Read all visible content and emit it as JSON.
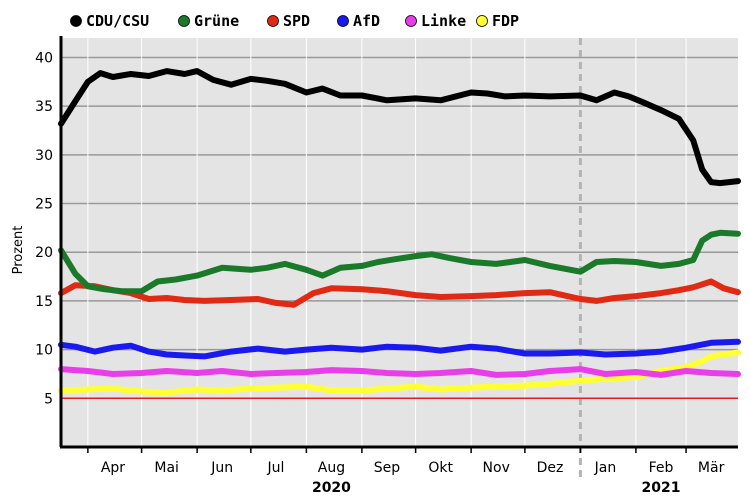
{
  "chart_data": {
    "type": "line",
    "ylabel": "Prozent",
    "ylim": [
      0,
      42
    ],
    "yticks": [
      5,
      10,
      15,
      20,
      25,
      30,
      35,
      40
    ],
    "x_range": [
      "2020-03-17",
      "2021-03-30"
    ],
    "months": [
      {
        "label": "Apr",
        "date": "2020-04-15"
      },
      {
        "label": "Mai",
        "date": "2020-05-15"
      },
      {
        "label": "Jun",
        "date": "2020-06-15"
      },
      {
        "label": "Jul",
        "date": "2020-07-15"
      },
      {
        "label": "Aug",
        "date": "2020-08-15"
      },
      {
        "label": "Sep",
        "date": "2020-09-15"
      },
      {
        "label": "Okt",
        "date": "2020-10-15"
      },
      {
        "label": "Nov",
        "date": "2020-11-15"
      },
      {
        "label": "Dez",
        "date": "2020-12-15"
      },
      {
        "label": "Jan",
        "date": "2021-01-15"
      },
      {
        "label": "Feb",
        "date": "2021-02-15"
      },
      {
        "label": "Mär",
        "date": "2021-03-15"
      }
    ],
    "years": [
      {
        "label": "2020",
        "date": "2020-08-15"
      },
      {
        "label": "2021",
        "date": "2021-02-15"
      }
    ],
    "year_boundary": "2021-01-01",
    "reference_line": {
      "y": 5,
      "color": "#e02020"
    },
    "grid": true,
    "legend_position": "top",
    "series": [
      {
        "name": "CDU/CSU",
        "color": "#000000",
        "x": [
          "2020-03-17",
          "2020-03-25",
          "2020-04-01",
          "2020-04-08",
          "2020-04-15",
          "2020-04-25",
          "2020-05-05",
          "2020-05-15",
          "2020-05-25",
          "2020-06-01",
          "2020-06-10",
          "2020-06-20",
          "2020-07-01",
          "2020-07-10",
          "2020-07-20",
          "2020-08-01",
          "2020-08-10",
          "2020-08-20",
          "2020-09-01",
          "2020-09-15",
          "2020-10-01",
          "2020-10-15",
          "2020-11-01",
          "2020-11-10",
          "2020-11-20",
          "2020-12-01",
          "2020-12-15",
          "2021-01-01",
          "2021-01-10",
          "2021-01-20",
          "2021-01-28",
          "2021-02-05",
          "2021-02-15",
          "2021-02-25",
          "2021-03-05",
          "2021-03-10",
          "2021-03-15",
          "2021-03-20",
          "2021-03-30"
        ],
        "y": [
          33.2,
          35.5,
          37.5,
          38.4,
          38,
          38.3,
          38.1,
          38.6,
          38.3,
          38.6,
          37.7,
          37.2,
          37.8,
          37.6,
          37.3,
          36.4,
          36.8,
          36.1,
          36.1,
          35.6,
          35.8,
          35.6,
          36.4,
          36.3,
          36,
          36.1,
          36,
          36.1,
          35.6,
          36.4,
          36,
          35.4,
          34.6,
          33.7,
          31.5,
          28.5,
          27.2,
          27.1,
          27.3
        ]
      },
      {
        "name": "Grüne",
        "color": "#1a7a2a",
        "x": [
          "2020-03-17",
          "2020-03-25",
          "2020-04-01",
          "2020-04-10",
          "2020-04-20",
          "2020-05-01",
          "2020-05-10",
          "2020-05-20",
          "2020-06-01",
          "2020-06-15",
          "2020-07-01",
          "2020-07-10",
          "2020-07-20",
          "2020-08-01",
          "2020-08-10",
          "2020-08-20",
          "2020-09-01",
          "2020-09-10",
          "2020-09-20",
          "2020-10-01",
          "2020-10-10",
          "2020-10-20",
          "2020-11-01",
          "2020-11-15",
          "2020-12-01",
          "2020-12-15",
          "2021-01-01",
          "2021-01-10",
          "2021-01-20",
          "2021-02-01",
          "2021-02-15",
          "2021-02-25",
          "2021-03-05",
          "2021-03-10",
          "2021-03-15",
          "2021-03-20",
          "2021-03-30"
        ],
        "y": [
          20.2,
          17.8,
          16.5,
          16.2,
          16,
          16,
          17,
          17.2,
          17.6,
          18.4,
          18.2,
          18.4,
          18.8,
          18.2,
          17.6,
          18.4,
          18.6,
          19,
          19.3,
          19.6,
          19.8,
          19.4,
          19,
          18.8,
          19.2,
          18.6,
          18,
          19,
          19.1,
          19,
          18.6,
          18.8,
          19.2,
          21.2,
          21.8,
          22,
          21.9
        ]
      },
      {
        "name": "SPD",
        "color": "#e02a14",
        "x": [
          "2020-03-17",
          "2020-03-25",
          "2020-04-05",
          "2020-04-15",
          "2020-04-25",
          "2020-05-05",
          "2020-05-15",
          "2020-05-25",
          "2020-06-05",
          "2020-06-20",
          "2020-07-05",
          "2020-07-15",
          "2020-07-25",
          "2020-08-05",
          "2020-08-15",
          "2020-09-01",
          "2020-09-15",
          "2020-10-01",
          "2020-10-15",
          "2020-11-01",
          "2020-11-15",
          "2020-12-01",
          "2020-12-15",
          "2021-01-01",
          "2021-01-10",
          "2021-01-20",
          "2021-02-01",
          "2021-02-15",
          "2021-02-25",
          "2021-03-05",
          "2021-03-15",
          "2021-03-22",
          "2021-03-30"
        ],
        "y": [
          15.8,
          16.6,
          16.5,
          16.1,
          15.8,
          15.2,
          15.3,
          15.1,
          15,
          15.1,
          15.2,
          14.8,
          14.6,
          15.8,
          16.3,
          16.2,
          16,
          15.6,
          15.4,
          15.5,
          15.6,
          15.8,
          15.9,
          15.2,
          15,
          15.3,
          15.5,
          15.8,
          16.1,
          16.4,
          17,
          16.3,
          15.9
        ]
      },
      {
        "name": "AfD",
        "color": "#1a1aee",
        "x": [
          "2020-03-17",
          "2020-03-25",
          "2020-04-05",
          "2020-04-15",
          "2020-04-25",
          "2020-05-05",
          "2020-05-15",
          "2020-05-25",
          "2020-06-05",
          "2020-06-20",
          "2020-07-05",
          "2020-07-20",
          "2020-08-01",
          "2020-08-15",
          "2020-09-01",
          "2020-09-15",
          "2020-10-01",
          "2020-10-15",
          "2020-11-01",
          "2020-11-15",
          "2020-12-01",
          "2020-12-15",
          "2021-01-01",
          "2021-01-15",
          "2021-02-01",
          "2021-02-15",
          "2021-03-01",
          "2021-03-15",
          "2021-03-30"
        ],
        "y": [
          10.5,
          10.3,
          9.8,
          10.2,
          10.4,
          9.8,
          9.5,
          9.4,
          9.3,
          9.8,
          10.1,
          9.8,
          10,
          10.2,
          10,
          10.3,
          10.2,
          9.9,
          10.3,
          10.1,
          9.6,
          9.6,
          9.7,
          9.5,
          9.6,
          9.8,
          10.2,
          10.7,
          10.8
        ]
      },
      {
        "name": "Linke",
        "color": "#e83de8",
        "x": [
          "2020-03-17",
          "2020-04-01",
          "2020-04-15",
          "2020-05-01",
          "2020-05-15",
          "2020-06-01",
          "2020-06-15",
          "2020-07-01",
          "2020-07-15",
          "2020-08-01",
          "2020-08-15",
          "2020-09-01",
          "2020-09-15",
          "2020-10-01",
          "2020-10-15",
          "2020-11-01",
          "2020-11-15",
          "2020-12-01",
          "2020-12-15",
          "2021-01-01",
          "2021-01-15",
          "2021-02-01",
          "2021-02-15",
          "2021-03-01",
          "2021-03-15",
          "2021-03-30"
        ],
        "y": [
          8,
          7.8,
          7.5,
          7.6,
          7.8,
          7.6,
          7.8,
          7.5,
          7.6,
          7.7,
          7.9,
          7.8,
          7.6,
          7.5,
          7.6,
          7.8,
          7.4,
          7.5,
          7.8,
          8,
          7.5,
          7.7,
          7.4,
          7.8,
          7.6,
          7.5
        ]
      },
      {
        "name": "FDP",
        "color": "#ffff33",
        "x": [
          "2020-03-17",
          "2020-04-01",
          "2020-04-15",
          "2020-05-01",
          "2020-05-15",
          "2020-06-01",
          "2020-06-15",
          "2020-07-01",
          "2020-07-15",
          "2020-08-01",
          "2020-08-15",
          "2020-09-01",
          "2020-09-15",
          "2020-10-01",
          "2020-10-15",
          "2020-11-01",
          "2020-11-15",
          "2020-12-01",
          "2020-12-15",
          "2021-01-01",
          "2021-01-15",
          "2021-02-01",
          "2021-02-15",
          "2021-03-01",
          "2021-03-10",
          "2021-03-15",
          "2021-03-30"
        ],
        "y": [
          5.8,
          5.9,
          6,
          5.7,
          5.6,
          5.9,
          5.8,
          6,
          6.1,
          6.2,
          5.8,
          5.8,
          6,
          6.2,
          5.9,
          6.1,
          6.2,
          6.3,
          6.5,
          6.8,
          7,
          7.2,
          7.8,
          8.2,
          8.8,
          9.3,
          9.7
        ]
      }
    ]
  }
}
